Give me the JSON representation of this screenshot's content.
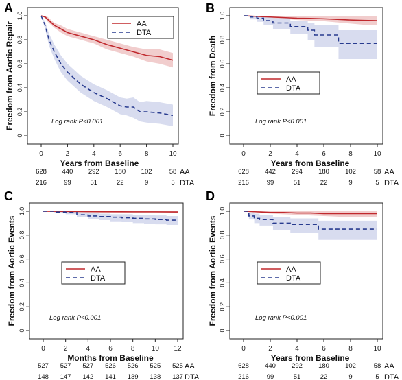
{
  "colors": {
    "AA": "#c0282d",
    "DTA": "#283b8f",
    "AA_band": "#f1cdcd",
    "DTA_band": "#d8dcef"
  },
  "chart_data": [
    {
      "panel": "A",
      "type": "line",
      "title": "",
      "ylabel": "Freedom from Aortic Repair",
      "xlabel": "Years from Baseline",
      "xlim": [
        0,
        10
      ],
      "ylim": [
        0,
        1.0
      ],
      "xticks": [
        "0",
        "2",
        "4",
        "6",
        "8",
        "10"
      ],
      "yticks": [
        "0",
        "0.2",
        "0.4",
        "0.6",
        "0.8",
        "1.0"
      ],
      "legend": {
        "position": "top-right",
        "entries": [
          "AA",
          "DTA"
        ]
      },
      "annotation": "Log rank P<0.001",
      "series": [
        {
          "name": "AA",
          "step": false,
          "x": [
            0,
            0.3,
            0.5,
            1,
            1.5,
            2,
            3,
            4,
            5,
            6,
            7,
            8,
            9,
            10
          ],
          "y": [
            1.0,
            0.99,
            0.97,
            0.92,
            0.89,
            0.86,
            0.83,
            0.8,
            0.76,
            0.73,
            0.7,
            0.67,
            0.66,
            0.63
          ],
          "lower": [
            1.0,
            0.98,
            0.95,
            0.9,
            0.86,
            0.83,
            0.8,
            0.77,
            0.72,
            0.69,
            0.66,
            0.62,
            0.6,
            0.57
          ],
          "upper": [
            1.0,
            1.0,
            0.99,
            0.94,
            0.92,
            0.89,
            0.86,
            0.83,
            0.8,
            0.77,
            0.74,
            0.72,
            0.72,
            0.69
          ]
        },
        {
          "name": "DTA",
          "step": false,
          "x": [
            0,
            0.3,
            0.6,
            1,
            1.5,
            2,
            2.5,
            3,
            4,
            5,
            5.5,
            6,
            6.5,
            7,
            7.5,
            8,
            9,
            10
          ],
          "y": [
            1.0,
            0.92,
            0.8,
            0.7,
            0.6,
            0.53,
            0.48,
            0.43,
            0.36,
            0.31,
            0.28,
            0.25,
            0.24,
            0.24,
            0.2,
            0.2,
            0.19,
            0.17
          ],
          "lower": [
            1.0,
            0.89,
            0.75,
            0.64,
            0.53,
            0.46,
            0.41,
            0.36,
            0.29,
            0.24,
            0.21,
            0.18,
            0.17,
            0.15,
            0.12,
            0.11,
            0.1,
            0.08
          ],
          "upper": [
            1.0,
            0.95,
            0.85,
            0.76,
            0.67,
            0.6,
            0.55,
            0.5,
            0.43,
            0.38,
            0.35,
            0.32,
            0.31,
            0.32,
            0.28,
            0.29,
            0.28,
            0.26
          ]
        }
      ],
      "risk_table": {
        "AA": [
          "628",
          "440",
          "292",
          "180",
          "102",
          "58"
        ],
        "DTA": [
          "216",
          "99",
          "51",
          "22",
          "9",
          "5"
        ]
      }
    },
    {
      "panel": "B",
      "type": "line",
      "title": "",
      "ylabel": "Freedom from Death",
      "xlabel": "Years from Baseline",
      "xlim": [
        0,
        10
      ],
      "ylim": [
        0,
        1.0
      ],
      "xticks": [
        "0",
        "2",
        "4",
        "6",
        "8",
        "10"
      ],
      "yticks": [
        "0",
        "0.2",
        "0.4",
        "0.6",
        "0.8",
        "1.0"
      ],
      "legend": {
        "position": "center-left",
        "entries": [
          "AA",
          "DTA"
        ]
      },
      "annotation": "Log rank P<0.001",
      "series": [
        {
          "name": "AA",
          "step": false,
          "x": [
            0,
            1,
            2,
            3,
            4,
            5,
            6,
            7,
            8,
            9,
            10
          ],
          "y": [
            1.0,
            0.995,
            0.99,
            0.985,
            0.98,
            0.978,
            0.975,
            0.97,
            0.965,
            0.962,
            0.96
          ],
          "lower": [
            1.0,
            0.99,
            0.98,
            0.975,
            0.965,
            0.96,
            0.955,
            0.945,
            0.935,
            0.925,
            0.92
          ],
          "upper": [
            1.0,
            1.0,
            1.0,
            0.995,
            0.995,
            0.995,
            0.995,
            0.995,
            0.995,
            0.995,
            0.995
          ]
        },
        {
          "name": "DTA",
          "step": true,
          "x": [
            0,
            0.5,
            1,
            1.5,
            2.2,
            3.5,
            4.8,
            5.3,
            7.1,
            10
          ],
          "y": [
            1.0,
            0.99,
            0.98,
            0.96,
            0.94,
            0.91,
            0.88,
            0.84,
            0.77,
            0.77
          ],
          "lower": [
            1.0,
            0.97,
            0.95,
            0.92,
            0.89,
            0.85,
            0.8,
            0.74,
            0.64,
            0.64
          ],
          "upper": [
            1.0,
            1.0,
            1.0,
            0.99,
            0.98,
            0.96,
            0.94,
            0.92,
            0.88,
            0.88
          ]
        }
      ],
      "risk_table": {
        "AA": [
          "628",
          "442",
          "294",
          "180",
          "102",
          "58"
        ],
        "DTA": [
          "216",
          "99",
          "51",
          "22",
          "9",
          "5"
        ]
      }
    },
    {
      "panel": "C",
      "type": "line",
      "title": "",
      "ylabel": "Freedom from Aortic Events",
      "xlabel": "Months from Baseline",
      "xlim": [
        0,
        12
      ],
      "ylim": [
        0,
        1.0
      ],
      "xticks": [
        "0",
        "2",
        "4",
        "6",
        "8",
        "10",
        "12"
      ],
      "yticks": [
        "0",
        "0.2",
        "0.4",
        "0.6",
        "0.8",
        "1.0"
      ],
      "legend": {
        "position": "center-left",
        "entries": [
          "AA",
          "DTA"
        ]
      },
      "annotation": "Log rank P<0.001",
      "series": [
        {
          "name": "AA",
          "step": false,
          "x": [
            0,
            2,
            4,
            6,
            8,
            10,
            12
          ],
          "y": [
            1.0,
            0.998,
            0.997,
            0.996,
            0.995,
            0.995,
            0.994
          ],
          "lower": [
            1.0,
            0.994,
            0.99,
            0.988,
            0.986,
            0.985,
            0.984
          ],
          "upper": [
            1.0,
            1.0,
            1.0,
            1.0,
            1.0,
            1.0,
            1.0
          ]
        },
        {
          "name": "DTA",
          "step": true,
          "x": [
            0,
            1,
            2,
            3,
            4,
            5,
            6,
            7,
            8,
            9,
            10,
            11,
            12
          ],
          "y": [
            1.0,
            0.993,
            0.99,
            0.97,
            0.96,
            0.955,
            0.95,
            0.945,
            0.94,
            0.935,
            0.93,
            0.925,
            0.925
          ],
          "lower": [
            1.0,
            0.985,
            0.975,
            0.95,
            0.935,
            0.925,
            0.915,
            0.91,
            0.9,
            0.895,
            0.89,
            0.885,
            0.885
          ],
          "upper": [
            1.0,
            1.0,
            1.0,
            0.99,
            0.985,
            0.98,
            0.975,
            0.975,
            0.97,
            0.97,
            0.965,
            0.96,
            0.96
          ]
        }
      ],
      "risk_table": {
        "AA": [
          "527",
          "527",
          "527",
          "526",
          "526",
          "525",
          "525"
        ],
        "DTA": [
          "148",
          "147",
          "142",
          "141",
          "139",
          "138",
          "137"
        ]
      }
    },
    {
      "panel": "D",
      "type": "line",
      "title": "",
      "ylabel": "Freedom from Aortic Events",
      "xlabel": "Years from Baseline",
      "xlim": [
        0,
        10
      ],
      "ylim": [
        0,
        1.0
      ],
      "xticks": [
        "0",
        "2",
        "4",
        "6",
        "8",
        "10"
      ],
      "yticks": [
        "0",
        "0.2",
        "0.4",
        "0.6",
        "0.8",
        "1.0"
      ],
      "legend": {
        "position": "center-left",
        "entries": [
          "AA",
          "DTA"
        ]
      },
      "annotation": "Log rank P<0.001",
      "series": [
        {
          "name": "AA",
          "step": false,
          "x": [
            0,
            1,
            2,
            3,
            4,
            5,
            6,
            7,
            8,
            9,
            10
          ],
          "y": [
            1.0,
            0.995,
            0.99,
            0.99,
            0.985,
            0.985,
            0.98,
            0.98,
            0.98,
            0.98,
            0.98
          ],
          "lower": [
            1.0,
            0.99,
            0.98,
            0.975,
            0.97,
            0.965,
            0.96,
            0.955,
            0.95,
            0.95,
            0.95
          ],
          "upper": [
            1.0,
            1.0,
            1.0,
            1.0,
            1.0,
            1.0,
            1.0,
            1.0,
            1.0,
            1.0,
            1.0
          ]
        },
        {
          "name": "DTA",
          "step": true,
          "x": [
            0,
            0.4,
            0.8,
            1.2,
            2.2,
            3.5,
            5.6,
            10
          ],
          "y": [
            1.0,
            0.96,
            0.94,
            0.93,
            0.9,
            0.89,
            0.85,
            0.85
          ],
          "lower": [
            1.0,
            0.93,
            0.9,
            0.88,
            0.84,
            0.82,
            0.76,
            0.76
          ],
          "upper": [
            1.0,
            0.99,
            0.98,
            0.97,
            0.95,
            0.94,
            0.92,
            0.92
          ]
        }
      ],
      "risk_table": {
        "AA": [
          "628",
          "440",
          "292",
          "180",
          "102",
          "58"
        ],
        "DTA": [
          "216",
          "99",
          "51",
          "22",
          "9",
          "5"
        ]
      }
    }
  ]
}
